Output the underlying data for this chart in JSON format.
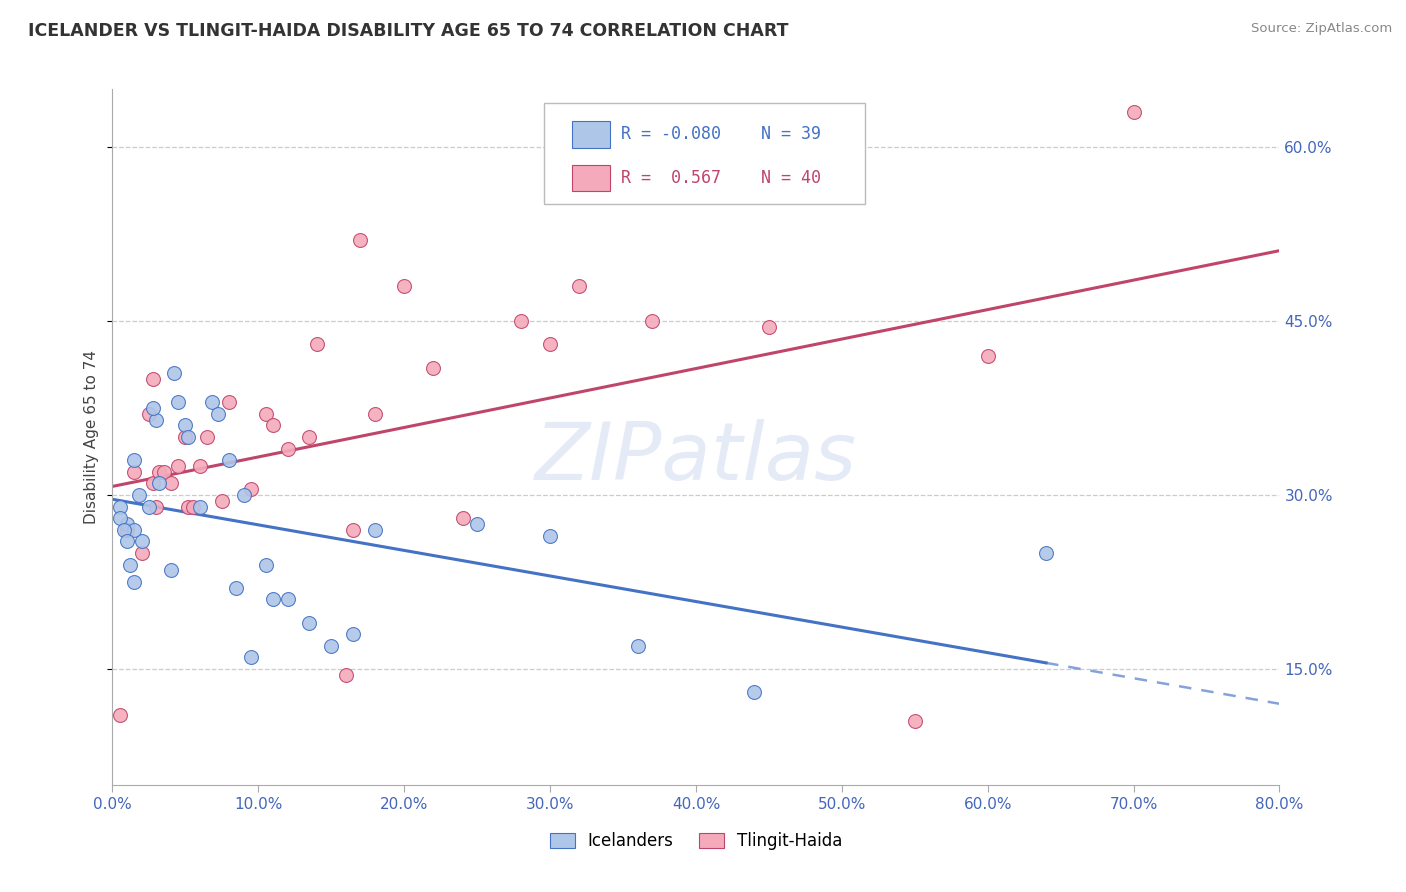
{
  "title": "ICELANDER VS TLINGIT-HAIDA DISABILITY AGE 65 TO 74 CORRELATION CHART",
  "source": "Source: ZipAtlas.com",
  "ylabel": "Disability Age 65 to 74",
  "legend_label1": "Icelanders",
  "legend_label2": "Tlingit-Haida",
  "R1": -0.08,
  "N1": 39,
  "R2": 0.567,
  "N2": 40,
  "color1": "#aec6e8",
  "color2": "#f4aabb",
  "line_color1": "#4472c4",
  "line_color2": "#c0456a",
  "watermark": "ZIPatlas",
  "xmin": 0.0,
  "xmax": 80.0,
  "ymin": 5.0,
  "ymax": 65.0,
  "x_ticks": [
    0,
    10,
    20,
    30,
    40,
    50,
    60,
    70,
    80
  ],
  "y_ticks": [
    15,
    30,
    45,
    60
  ],
  "blue_x": [
    1.0,
    2.0,
    1.5,
    1.5,
    1.5,
    0.5,
    0.5,
    0.8,
    1.0,
    1.2,
    1.8,
    2.5,
    3.0,
    2.8,
    3.2,
    4.2,
    4.5,
    5.0,
    5.2,
    6.0,
    6.8,
    7.2,
    8.0,
    8.5,
    9.0,
    10.5,
    11.0,
    12.0,
    13.5,
    15.0,
    16.5,
    18.0,
    25.0,
    30.0,
    36.0,
    44.0,
    64.0,
    4.0,
    9.5
  ],
  "blue_y": [
    27.5,
    26.0,
    33.0,
    22.5,
    27.0,
    29.0,
    28.0,
    27.0,
    26.0,
    24.0,
    30.0,
    29.0,
    36.5,
    37.5,
    31.0,
    40.5,
    38.0,
    36.0,
    35.0,
    29.0,
    38.0,
    37.0,
    33.0,
    22.0,
    30.0,
    24.0,
    21.0,
    21.0,
    19.0,
    17.0,
    18.0,
    27.0,
    27.5,
    26.5,
    17.0,
    13.0,
    25.0,
    23.5,
    16.0
  ],
  "pink_x": [
    0.5,
    1.0,
    1.5,
    2.0,
    2.5,
    2.8,
    3.0,
    3.2,
    3.5,
    4.0,
    4.5,
    5.0,
    5.2,
    5.5,
    6.0,
    6.5,
    7.5,
    8.0,
    9.5,
    10.5,
    11.0,
    12.0,
    13.5,
    14.0,
    16.0,
    16.5,
    17.0,
    18.0,
    20.0,
    22.0,
    24.0,
    28.0,
    30.0,
    32.0,
    37.0,
    45.0,
    55.0,
    60.0,
    70.0,
    2.8
  ],
  "pink_y": [
    11.0,
    27.0,
    32.0,
    25.0,
    37.0,
    31.0,
    29.0,
    32.0,
    32.0,
    31.0,
    32.5,
    35.0,
    29.0,
    29.0,
    32.5,
    35.0,
    29.5,
    38.0,
    30.5,
    37.0,
    36.0,
    34.0,
    35.0,
    43.0,
    14.5,
    27.0,
    52.0,
    37.0,
    48.0,
    41.0,
    28.0,
    45.0,
    43.0,
    48.0,
    45.0,
    44.5,
    10.5,
    42.0,
    63.0,
    40.0
  ]
}
